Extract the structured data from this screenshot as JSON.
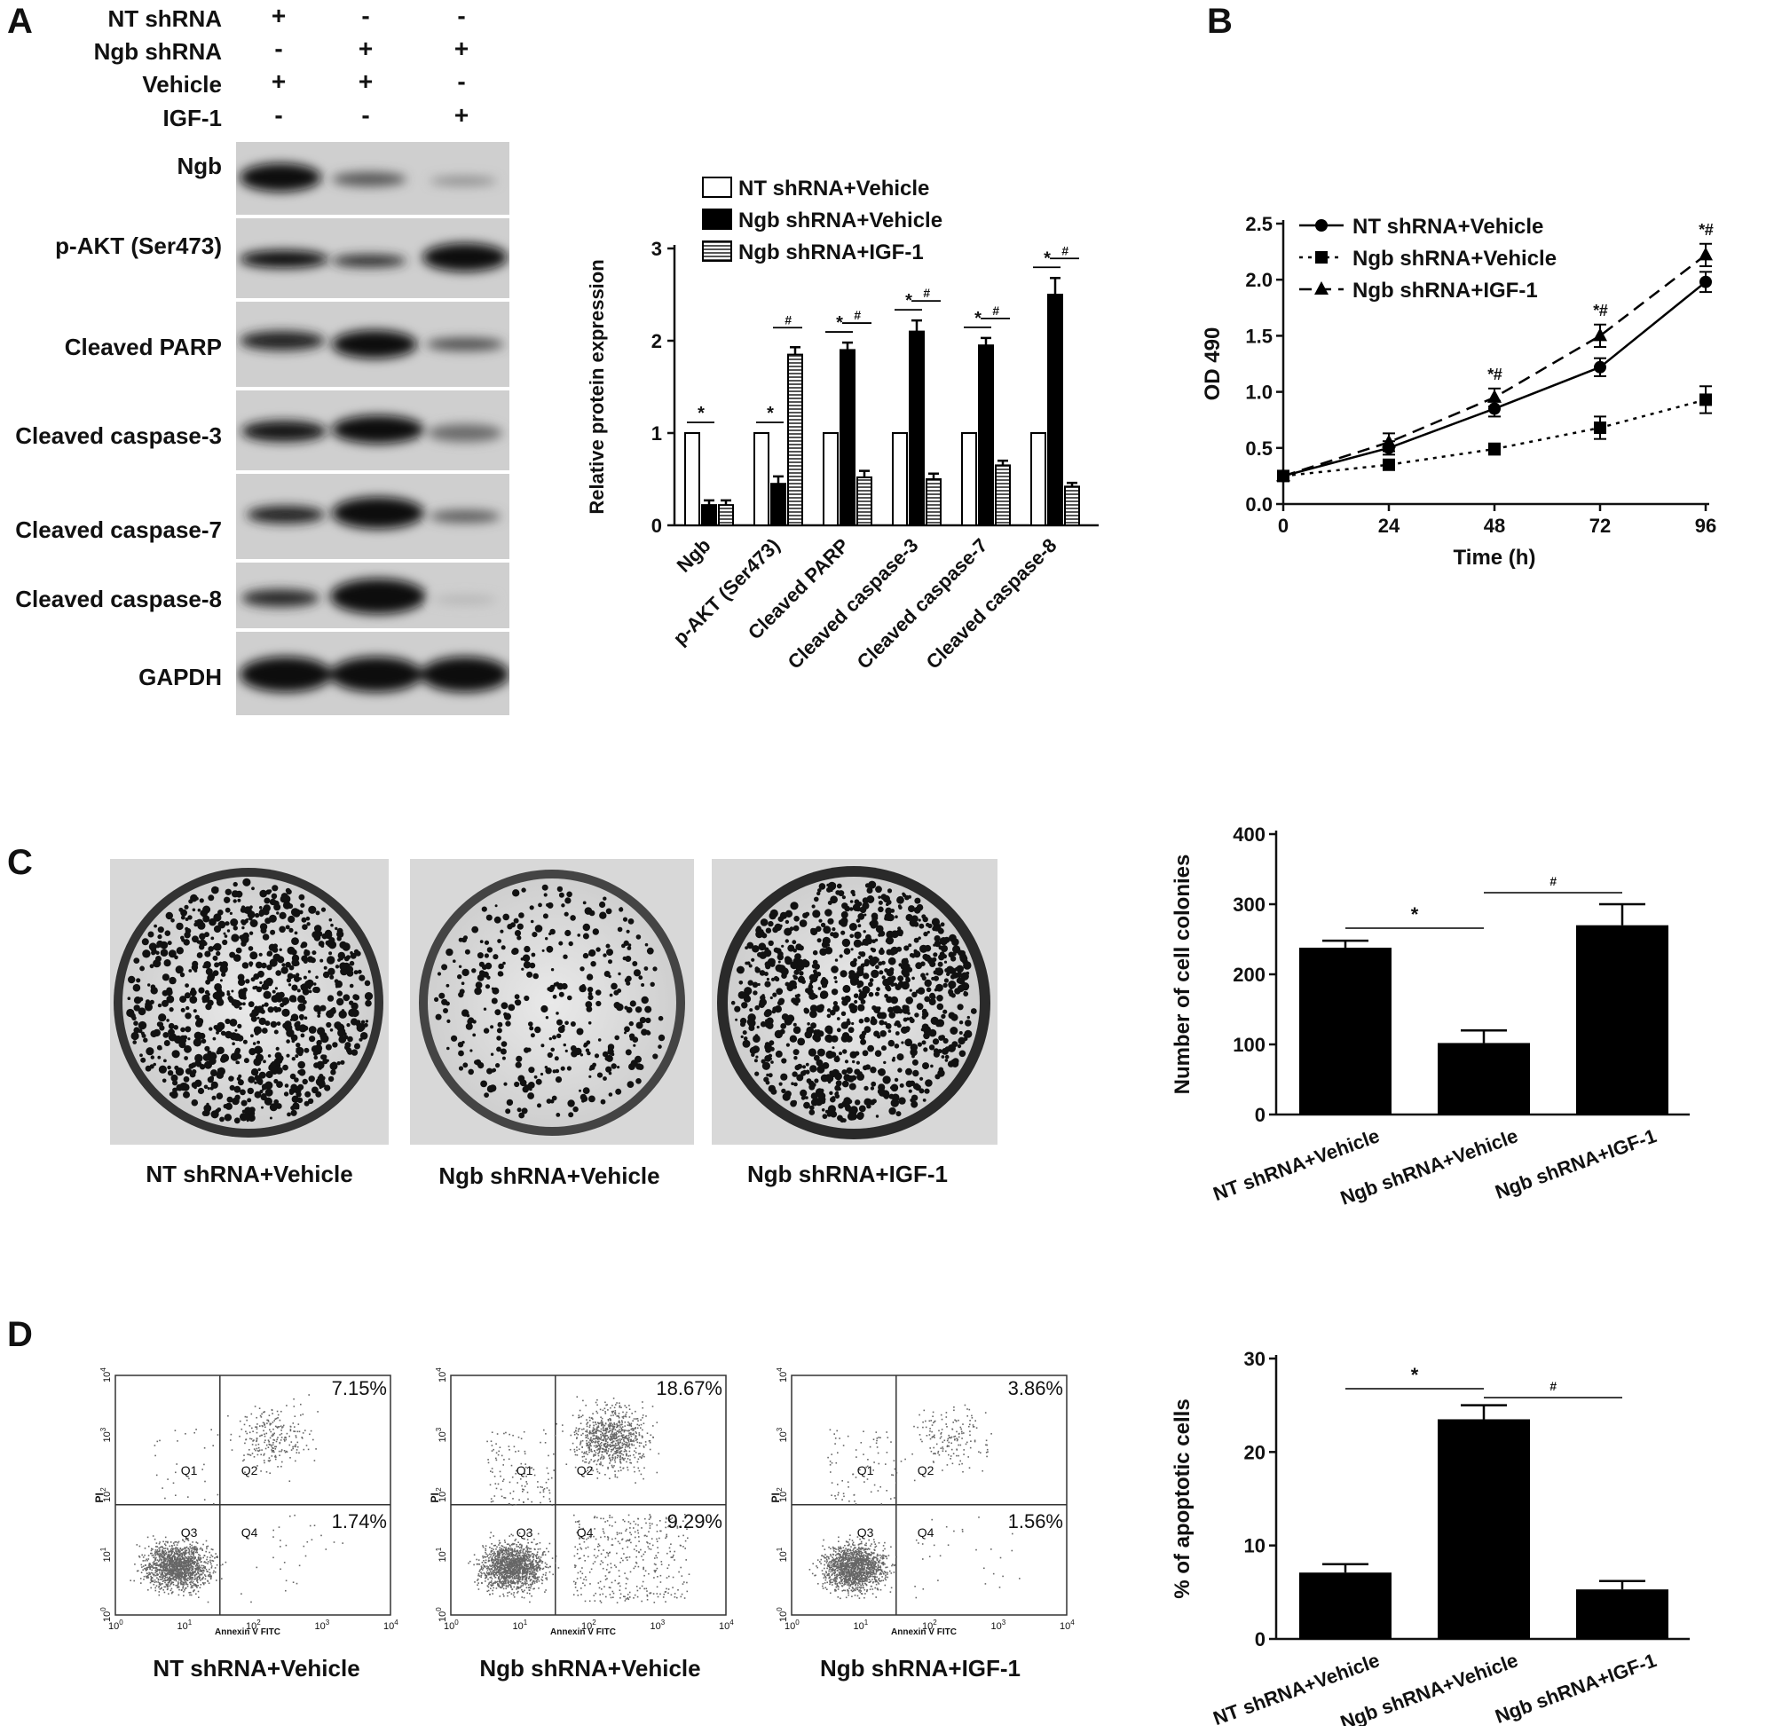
{
  "panels": {
    "a": "A",
    "b": "B",
    "c": "C",
    "d": "D"
  },
  "groups": [
    "NT shRNA+Vehicle",
    "Ngb shRNA+Vehicle",
    "Ngb shRNA+IGF-1"
  ],
  "western_blot": {
    "conditions": [
      {
        "label": "NT shRNA",
        "signs": [
          "+",
          "-",
          "-"
        ]
      },
      {
        "label": "Ngb shRNA",
        "signs": [
          "-",
          "+",
          "+"
        ]
      },
      {
        "label": "Vehicle",
        "signs": [
          "+",
          "+",
          "-"
        ]
      },
      {
        "label": "IGF-1",
        "signs": [
          "-",
          "-",
          "+"
        ]
      }
    ],
    "rows": [
      "Ngb",
      "p-AKT (Ser473)",
      "Cleaved PARP",
      "Cleaved caspase-3",
      "Cleaved caspase-7",
      "Cleaved caspase-8",
      "GAPDH"
    ]
  },
  "dish_labels": [
    "NT shRNA+Vehicle",
    "Ngb shRNA+Vehicle",
    "Ngb shRNA+IGF-1"
  ],
  "flow": {
    "labels": [
      "NT shRNA+Vehicle",
      "Ngb shRNA+Vehicle",
      "Ngb shRNA+IGF-1"
    ],
    "axis_x": "Annexin V FITC",
    "axis_y": "PI",
    "quadrants": [
      "Q1",
      "Q2",
      "Q3",
      "Q4"
    ],
    "ticks": [
      "10",
      "0",
      "1",
      "2",
      "3",
      "4"
    ],
    "q2_percent": [
      "7.15%",
      "18.67%",
      "3.86%"
    ],
    "q4_percent": [
      "1.74%",
      "9.29%",
      "1.56%"
    ]
  },
  "chart_data": [
    {
      "type": "bar",
      "panel": "A",
      "ylabel": "Relative protein expression",
      "ylim": [
        0,
        3
      ],
      "yticks": [
        "0",
        "1",
        "2",
        "3"
      ],
      "categories": [
        "Ngb",
        "p-AKT (Ser473)",
        "Cleaved PARP",
        "Cleaved caspase-3",
        "Cleaved caspase-7",
        "Cleaved caspase-8"
      ],
      "series": [
        {
          "name": "NT shRNA+Vehicle",
          "values": [
            1,
            1,
            1,
            1,
            1,
            1
          ],
          "errors": [
            0,
            0,
            0,
            0,
            0,
            0
          ]
        },
        {
          "name": "Ngb shRNA+Vehicle",
          "values": [
            0.22,
            0.45,
            1.9,
            2.1,
            1.95,
            2.5
          ],
          "errors": [
            0.05,
            0.08,
            0.08,
            0.12,
            0.08,
            0.18
          ]
        },
        {
          "name": "Ngb shRNA+IGF-1",
          "values": [
            0.22,
            1.85,
            0.52,
            0.5,
            0.65,
            0.42
          ],
          "errors": [
            0.05,
            0.08,
            0.07,
            0.06,
            0.05,
            0.04
          ]
        }
      ],
      "legend": "top",
      "significance": {
        "star": "*",
        "hash": "#"
      }
    },
    {
      "type": "line",
      "panel": "B",
      "xlabel": "Time (h)",
      "ylabel": "OD 490",
      "x": [
        0,
        24,
        48,
        72,
        96
      ],
      "xticks": [
        "0",
        "24",
        "48",
        "72",
        "96"
      ],
      "ylim": [
        0,
        2.5
      ],
      "yticks": [
        "0.0",
        "0.5",
        "1.0",
        "1.5",
        "2.0",
        "2.5"
      ],
      "series": [
        {
          "name": "NT shRNA+Vehicle",
          "values": [
            0.25,
            0.5,
            0.85,
            1.22,
            1.98
          ],
          "errors": [
            0.03,
            0.06,
            0.07,
            0.08,
            0.09
          ]
        },
        {
          "name": "Ngb shRNA+Vehicle",
          "values": [
            0.25,
            0.35,
            0.49,
            0.68,
            0.93
          ],
          "errors": [
            0.03,
            0.04,
            0.05,
            0.1,
            0.12
          ]
        },
        {
          "name": "Ngb shRNA+IGF-1",
          "values": [
            0.25,
            0.55,
            0.95,
            1.5,
            2.22
          ],
          "errors": [
            0.03,
            0.08,
            0.08,
            0.1,
            0.1
          ]
        }
      ],
      "annotations": [
        "*#",
        "*#",
        "*#"
      ],
      "legend": "top-left"
    },
    {
      "type": "bar",
      "panel": "C",
      "ylabel": "Number of cell colonies",
      "categories": [
        "NT shRNA+Vehicle",
        "Ngb shRNA+Vehicle",
        "Ngb shRNA+IGF-1"
      ],
      "values": [
        238,
        102,
        270
      ],
      "errors": [
        10,
        18,
        30
      ],
      "ylim": [
        0,
        400
      ],
      "yticks": [
        "0",
        "100",
        "200",
        "300",
        "400"
      ],
      "significance": [
        "*",
        "#"
      ]
    },
    {
      "type": "bar",
      "panel": "D",
      "ylabel": "% of apoptotic cells",
      "categories": [
        "NT shRNA+Vehicle",
        "Ngb shRNA+Vehicle",
        "Ngb shRNA+IGF-1"
      ],
      "values": [
        7.1,
        23.5,
        5.3
      ],
      "errors": [
        0.9,
        1.5,
        0.9
      ],
      "ylim": [
        0,
        30
      ],
      "yticks": [
        "0",
        "10",
        "20",
        "30"
      ],
      "significance": [
        "*",
        "#"
      ]
    }
  ]
}
